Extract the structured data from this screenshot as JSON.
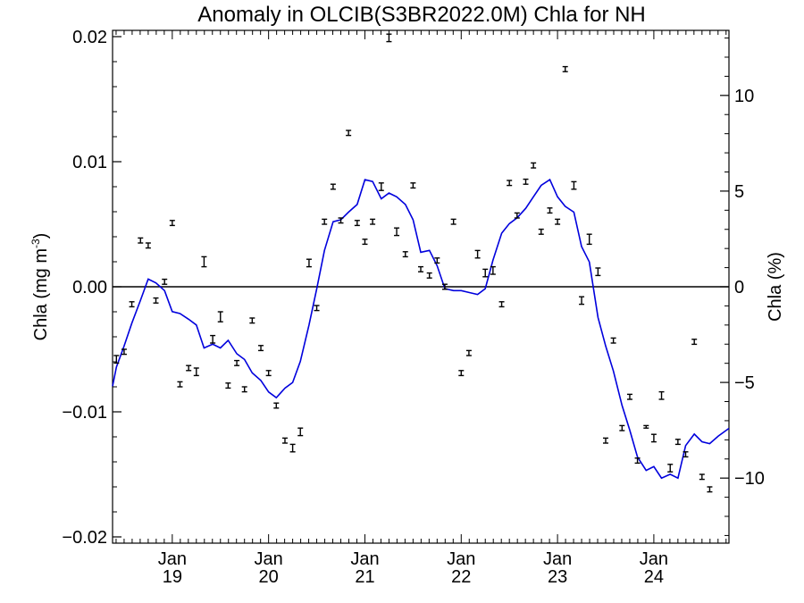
{
  "chart_data": {
    "type": "line",
    "title": "Anomaly in OLCIB(S3BR2022.0M) Chla for NH",
    "ylabel_left_main": "Chla (mg m",
    "ylabel_left_sup": "-3",
    "ylabel_left_close": ")",
    "ylabel_right": "Chla (%)",
    "ylim_left": [
      -0.0205,
      0.0205
    ],
    "ylim_right": [
      -13.4,
      13.4
    ],
    "x_range": [
      2018.38,
      2024.78
    ],
    "yticks_left": [
      {
        "value": 0.02,
        "label": "0.02"
      },
      {
        "value": 0.01,
        "label": "0.01"
      },
      {
        "value": 0.0,
        "label": "0.00"
      },
      {
        "value": -0.01,
        "label": "−0.01"
      },
      {
        "value": -0.02,
        "label": "−0.02"
      }
    ],
    "yticks_right": [
      {
        "value": 10,
        "label": "10"
      },
      {
        "value": 5,
        "label": "5"
      },
      {
        "value": 0,
        "label": "0"
      },
      {
        "value": -5,
        "label": "−5"
      },
      {
        "value": -10,
        "label": "−10"
      }
    ],
    "xticks": [
      {
        "x": 2019.0,
        "month": "Jan",
        "year": "19"
      },
      {
        "x": 2020.0,
        "month": "Jan",
        "year": "20"
      },
      {
        "x": 2021.0,
        "month": "Jan",
        "year": "21"
      },
      {
        "x": 2022.0,
        "month": "Jan",
        "year": "22"
      },
      {
        "x": 2023.0,
        "month": "Jan",
        "year": "23"
      },
      {
        "x": 2024.0,
        "month": "Jan",
        "year": "24"
      }
    ],
    "zero_line": true,
    "line_color": "#0000dd",
    "point_color": "#000000",
    "series": [
      {
        "kind": "monthly anomaly (mg m-3) with error bar",
        "axis": "left",
        "points": [
          [
            2018.42,
            -0.0058,
            0.0003
          ],
          [
            2018.5,
            -0.0052,
            0.0002
          ],
          [
            2018.58,
            -0.0014,
            0.0002
          ],
          [
            2018.67,
            0.0037,
            0.0002
          ],
          [
            2018.75,
            0.0033,
            0.0002
          ],
          [
            2018.83,
            -0.0011,
            0.0002
          ],
          [
            2018.92,
            0.0004,
            0.0002
          ],
          [
            2019.0,
            0.0051,
            0.0002
          ],
          [
            2019.08,
            -0.0078,
            0.0002
          ],
          [
            2019.17,
            -0.0065,
            0.0002
          ],
          [
            2019.25,
            -0.0068,
            0.0003
          ],
          [
            2019.33,
            0.002,
            0.0004
          ],
          [
            2019.42,
            -0.0042,
            0.0003
          ],
          [
            2019.5,
            -0.0024,
            0.0004
          ],
          [
            2019.58,
            -0.0079,
            0.0002
          ],
          [
            2019.67,
            -0.0061,
            0.0002
          ],
          [
            2019.75,
            -0.0082,
            0.0002
          ],
          [
            2019.83,
            -0.0027,
            0.0002
          ],
          [
            2019.92,
            -0.0049,
            0.0002
          ],
          [
            2020.0,
            -0.0069,
            0.0002
          ],
          [
            2020.08,
            -0.0095,
            0.0002
          ],
          [
            2020.17,
            -0.0123,
            0.0002
          ],
          [
            2020.25,
            -0.0129,
            0.0003
          ],
          [
            2020.33,
            -0.0116,
            0.0003
          ],
          [
            2020.42,
            0.0019,
            0.0003
          ],
          [
            2020.5,
            -0.0017,
            0.0002
          ],
          [
            2020.58,
            0.0052,
            0.0002
          ],
          [
            2020.67,
            0.008,
            0.0002
          ],
          [
            2020.75,
            0.0053,
            0.0002
          ],
          [
            2020.83,
            0.0123,
            0.0002
          ],
          [
            2020.92,
            0.0051,
            0.0002
          ],
          [
            2021.0,
            0.0036,
            0.0002
          ],
          [
            2021.08,
            0.0052,
            0.0002
          ],
          [
            2021.17,
            0.008,
            0.0003
          ],
          [
            2021.25,
            0.0199,
            0.0003
          ],
          [
            2021.33,
            0.0044,
            0.0003
          ],
          [
            2021.42,
            0.0026,
            0.0002
          ],
          [
            2021.5,
            0.0081,
            0.0002
          ],
          [
            2021.58,
            0.0014,
            0.0002
          ],
          [
            2021.67,
            0.0009,
            0.0002
          ],
          [
            2021.75,
            0.0021,
            0.0002
          ],
          [
            2021.83,
            0.0,
            0.0002
          ],
          [
            2021.92,
            0.0052,
            0.0002
          ],
          [
            2022.0,
            -0.0069,
            0.0002
          ],
          [
            2022.08,
            -0.0053,
            0.0002
          ],
          [
            2022.17,
            0.0026,
            0.0003
          ],
          [
            2022.25,
            0.0011,
            0.0003
          ],
          [
            2022.33,
            0.0013,
            0.0003
          ],
          [
            2022.42,
            -0.0014,
            0.0002
          ],
          [
            2022.5,
            0.0083,
            0.0002
          ],
          [
            2022.58,
            0.0057,
            0.0002
          ],
          [
            2022.67,
            0.0084,
            0.0002
          ],
          [
            2022.75,
            0.0097,
            0.0002
          ],
          [
            2022.83,
            0.0044,
            0.0002
          ],
          [
            2022.92,
            0.0061,
            0.0002
          ],
          [
            2023.0,
            0.0052,
            0.0002
          ],
          [
            2023.08,
            0.0174,
            0.0002
          ],
          [
            2023.17,
            0.0081,
            0.0003
          ],
          [
            2023.25,
            -0.0011,
            0.0003
          ],
          [
            2023.33,
            0.0038,
            0.0004
          ],
          [
            2023.42,
            0.0012,
            0.0003
          ],
          [
            2023.5,
            -0.0123,
            0.0002
          ],
          [
            2023.58,
            -0.0043,
            0.0002
          ],
          [
            2023.67,
            -0.0113,
            0.0002
          ],
          [
            2023.75,
            -0.0088,
            0.0002
          ],
          [
            2023.83,
            -0.0139,
            0.0002
          ],
          [
            2023.92,
            -0.0112,
            0.0001
          ],
          [
            2024.0,
            -0.0121,
            0.0003
          ],
          [
            2024.08,
            -0.0087,
            0.0003
          ],
          [
            2024.17,
            -0.0145,
            0.0003
          ],
          [
            2024.25,
            -0.0124,
            0.0002
          ],
          [
            2024.33,
            -0.0134,
            0.0002
          ],
          [
            2024.42,
            -0.0044,
            0.0002
          ],
          [
            2024.5,
            -0.0152,
            0.0002
          ],
          [
            2024.58,
            -0.0162,
            0.0002
          ]
        ]
      },
      {
        "kind": "smoothed anomaly (%)",
        "axis": "right",
        "points": [
          [
            2018.38,
            -5.2
          ],
          [
            2018.42,
            -4.2
          ],
          [
            2018.5,
            -3.1
          ],
          [
            2018.58,
            -1.9
          ],
          [
            2018.67,
            -0.7
          ],
          [
            2018.75,
            0.4
          ],
          [
            2018.83,
            0.2
          ],
          [
            2018.92,
            -0.2
          ],
          [
            2019.0,
            -1.3
          ],
          [
            2019.08,
            -1.4
          ],
          [
            2019.17,
            -1.7
          ],
          [
            2019.25,
            -2.0
          ],
          [
            2019.33,
            -3.2
          ],
          [
            2019.42,
            -3.0
          ],
          [
            2019.5,
            -3.2
          ],
          [
            2019.58,
            -2.8
          ],
          [
            2019.67,
            -3.5
          ],
          [
            2019.75,
            -3.8
          ],
          [
            2019.83,
            -4.5
          ],
          [
            2019.92,
            -4.9
          ],
          [
            2020.0,
            -5.5
          ],
          [
            2020.08,
            -5.8
          ],
          [
            2020.17,
            -5.3
          ],
          [
            2020.25,
            -5.0
          ],
          [
            2020.33,
            -3.9
          ],
          [
            2020.42,
            -2.0
          ],
          [
            2020.5,
            -0.1
          ],
          [
            2020.58,
            1.9
          ],
          [
            2020.67,
            3.4
          ],
          [
            2020.75,
            3.5
          ],
          [
            2020.83,
            3.9
          ],
          [
            2020.92,
            4.3
          ],
          [
            2021.0,
            5.6
          ],
          [
            2021.08,
            5.5
          ],
          [
            2021.17,
            4.6
          ],
          [
            2021.25,
            4.9
          ],
          [
            2021.33,
            4.7
          ],
          [
            2021.42,
            4.3
          ],
          [
            2021.5,
            3.5
          ],
          [
            2021.58,
            1.8
          ],
          [
            2021.67,
            1.9
          ],
          [
            2021.75,
            1.1
          ],
          [
            2021.83,
            -0.1
          ],
          [
            2021.92,
            -0.2
          ],
          [
            2022.0,
            -0.2
          ],
          [
            2022.08,
            -0.3
          ],
          [
            2022.17,
            -0.4
          ],
          [
            2022.25,
            -0.1
          ],
          [
            2022.33,
            1.4
          ],
          [
            2022.42,
            2.8
          ],
          [
            2022.5,
            3.3
          ],
          [
            2022.58,
            3.6
          ],
          [
            2022.67,
            4.1
          ],
          [
            2022.75,
            4.7
          ],
          [
            2022.83,
            5.3
          ],
          [
            2022.92,
            5.6
          ],
          [
            2023.0,
            4.7
          ],
          [
            2023.08,
            4.2
          ],
          [
            2023.17,
            3.9
          ],
          [
            2023.25,
            2.1
          ],
          [
            2023.33,
            1.3
          ],
          [
            2023.42,
            -1.6
          ],
          [
            2023.5,
            -3.1
          ],
          [
            2023.58,
            -4.4
          ],
          [
            2023.67,
            -6.2
          ],
          [
            2023.75,
            -7.5
          ],
          [
            2023.83,
            -8.9
          ],
          [
            2023.92,
            -9.6
          ],
          [
            2024.0,
            -9.4
          ],
          [
            2024.08,
            -10.0
          ],
          [
            2024.17,
            -9.8
          ],
          [
            2024.25,
            -10.0
          ],
          [
            2024.33,
            -8.3
          ],
          [
            2024.42,
            -7.7
          ],
          [
            2024.5,
            -8.1
          ],
          [
            2024.58,
            -8.2
          ],
          [
            2024.67,
            -7.8
          ],
          [
            2024.78,
            -7.4
          ]
        ]
      }
    ]
  }
}
